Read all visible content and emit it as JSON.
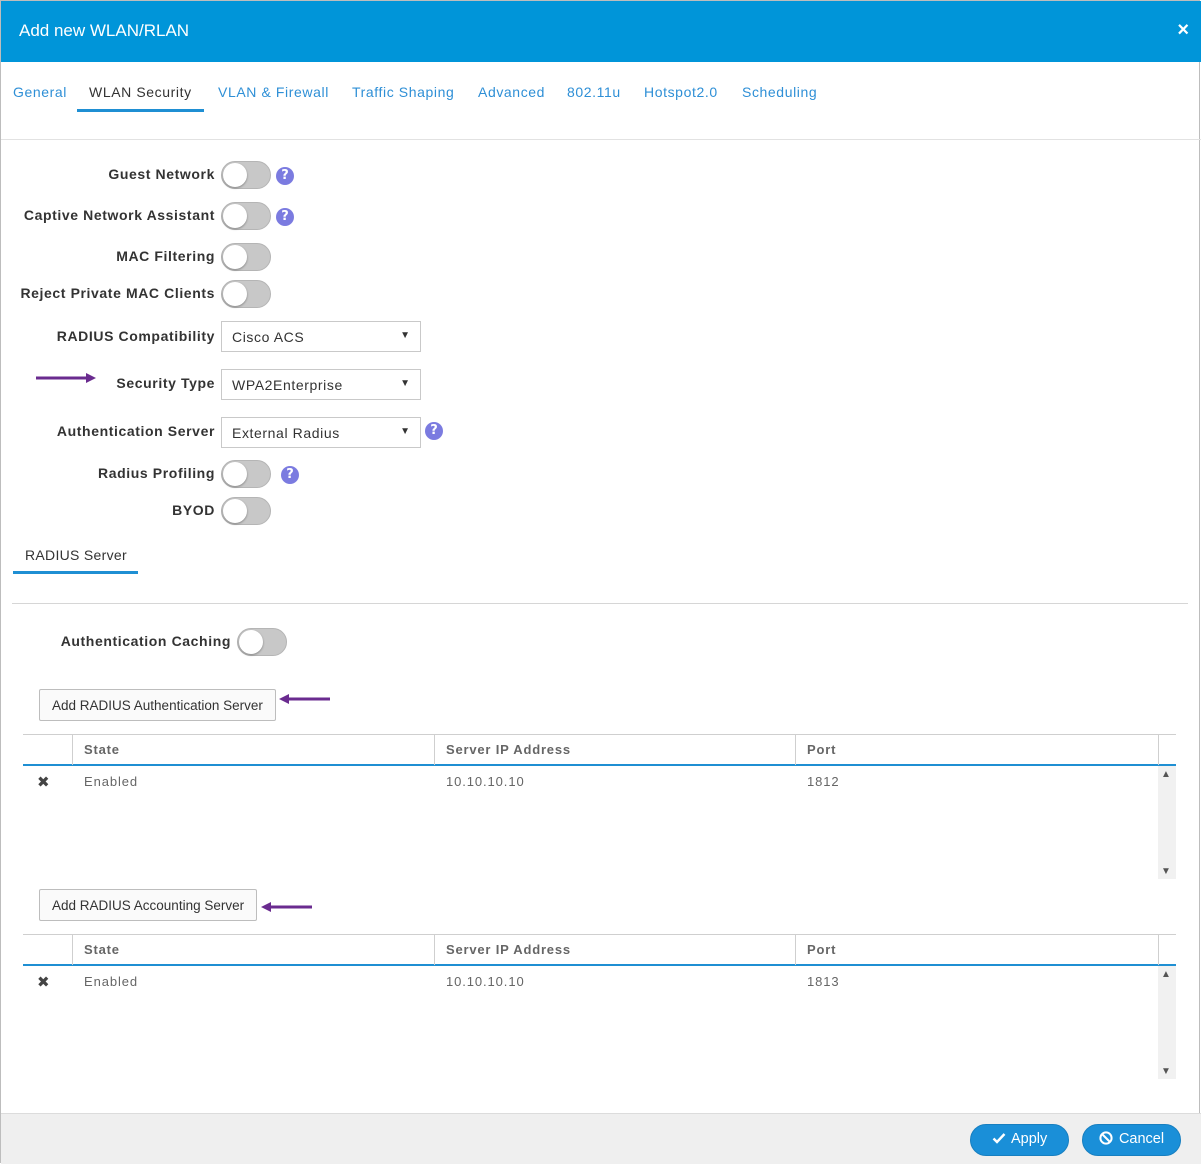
{
  "dialog": {
    "title": "Add new WLAN/RLAN",
    "close_label": "×"
  },
  "tabs": [
    {
      "label": "General"
    },
    {
      "label": "WLAN Security"
    },
    {
      "label": "VLAN & Firewall"
    },
    {
      "label": "Traffic Shaping"
    },
    {
      "label": "Advanced"
    },
    {
      "label": "802.11u"
    },
    {
      "label": "Hotspot2.0"
    },
    {
      "label": "Scheduling"
    }
  ],
  "active_tab": "WLAN Security",
  "form": {
    "guest_network": {
      "label": "Guest Network",
      "enabled": false,
      "has_help": true
    },
    "captive_network_assistant": {
      "label": "Captive Network Assistant",
      "enabled": false,
      "has_help": true
    },
    "mac_filtering": {
      "label": "MAC Filtering",
      "enabled": false
    },
    "reject_private_mac": {
      "label": "Reject Private MAC Clients",
      "enabled": false
    },
    "radius_compatibility": {
      "label": "RADIUS Compatibility",
      "value": "Cisco ACS"
    },
    "security_type": {
      "label": "Security Type",
      "value": "WPA2Enterprise"
    },
    "authentication_server": {
      "label": "Authentication Server",
      "value": "External Radius",
      "has_help": true
    },
    "radius_profiling": {
      "label": "Radius Profiling",
      "enabled": false,
      "has_help": true
    },
    "byod": {
      "label": "BYOD",
      "enabled": false
    }
  },
  "help_glyph": "?",
  "caret_glyph": "▼",
  "subtab": {
    "label": "RADIUS Server"
  },
  "radius": {
    "auth_caching": {
      "label": "Authentication Caching",
      "enabled": false
    },
    "add_auth_button": "Add RADIUS Authentication Server",
    "add_acct_button": "Add RADIUS Accounting Server",
    "columns": [
      "State",
      "Server IP Address",
      "Port"
    ],
    "auth_servers": [
      {
        "state": "Enabled",
        "ip": "10.10.10.10",
        "port": "1812"
      }
    ],
    "acct_servers": [
      {
        "state": "Enabled",
        "ip": "10.10.10.10",
        "port": "1813"
      }
    ]
  },
  "icons": {
    "delete": "✖",
    "scroll_up": "▲",
    "scroll_down": "▼",
    "apply": "check-icon",
    "cancel": "ban-icon"
  },
  "footer": {
    "apply_label": "Apply",
    "cancel_label": "Cancel"
  },
  "colors": {
    "titlebar": "#0095d9",
    "accent": "#1f8fd3",
    "annotation_arrow": "#6a2b8f",
    "help_icon": "#7b7be0"
  }
}
